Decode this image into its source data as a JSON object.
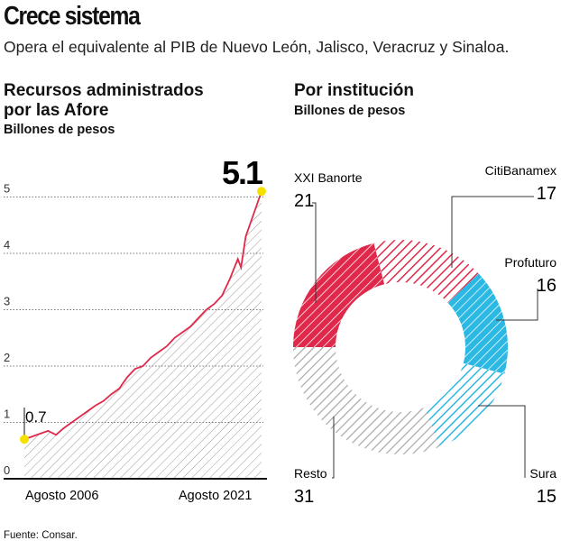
{
  "header": {
    "title": "Crece sistema",
    "subtitle": "Opera el equivalente al PIB de Nuevo León, Jalisco, Veracruz y Sinaloa."
  },
  "left": {
    "title_line1": "Recursos administrados",
    "title_line2": "por las Afore",
    "units": "Billones de pesos"
  },
  "right": {
    "title": "Por institución",
    "units": "Billones de pesos"
  },
  "source": "Fuente: Consar.",
  "colors": {
    "red": "#e0284a",
    "blue": "#2bb8e3",
    "gray": "#aaaaaa",
    "yellow": "#f5e100"
  },
  "chart_data": [
    {
      "type": "line",
      "title": "Recursos administrados por las Afore",
      "ylabel": "Billones de pesos",
      "ylim": [
        0,
        5
      ],
      "yticks": [
        "0",
        "1",
        "2",
        "3",
        "4",
        "5"
      ],
      "xtick_labels": [
        "Agosto 2006",
        "Agosto 2021"
      ],
      "x": [
        2006.6,
        2007.1,
        2007.6,
        2008.1,
        2008.6,
        2009.1,
        2009.6,
        2010.1,
        2010.6,
        2011.1,
        2011.6,
        2012.1,
        2012.6,
        2013.1,
        2013.6,
        2014.1,
        2014.6,
        2015.1,
        2015.6,
        2016.1,
        2016.6,
        2017.1,
        2017.6,
        2018.1,
        2018.6,
        2019.1,
        2019.6,
        2020.1,
        2020.3,
        2020.6,
        2021.1,
        2021.6
      ],
      "values": [
        0.7,
        0.75,
        0.8,
        0.85,
        0.78,
        0.9,
        1.0,
        1.1,
        1.2,
        1.3,
        1.38,
        1.5,
        1.6,
        1.8,
        1.95,
        2.0,
        2.15,
        2.25,
        2.35,
        2.5,
        2.6,
        2.7,
        2.85,
        3.0,
        3.1,
        3.25,
        3.55,
        3.9,
        3.75,
        4.3,
        4.7,
        5.1
      ],
      "annotations": [
        {
          "label": "0.7",
          "value": 0.7
        },
        {
          "label": "5.1",
          "value": 5.1
        }
      ]
    },
    {
      "type": "pie",
      "title": "Por institución",
      "units": "Billones de pesos",
      "slices": [
        {
          "label": "XXI Banorte",
          "value": 21,
          "display": "21"
        },
        {
          "label": "CitiBanamex",
          "value": 17,
          "display": "17"
        },
        {
          "label": "Profuturo",
          "value": 16,
          "display": "16"
        },
        {
          "label": "Sura",
          "value": 15,
          "display": "15"
        },
        {
          "label": "Resto",
          "value": 31,
          "display": "31"
        }
      ]
    }
  ]
}
